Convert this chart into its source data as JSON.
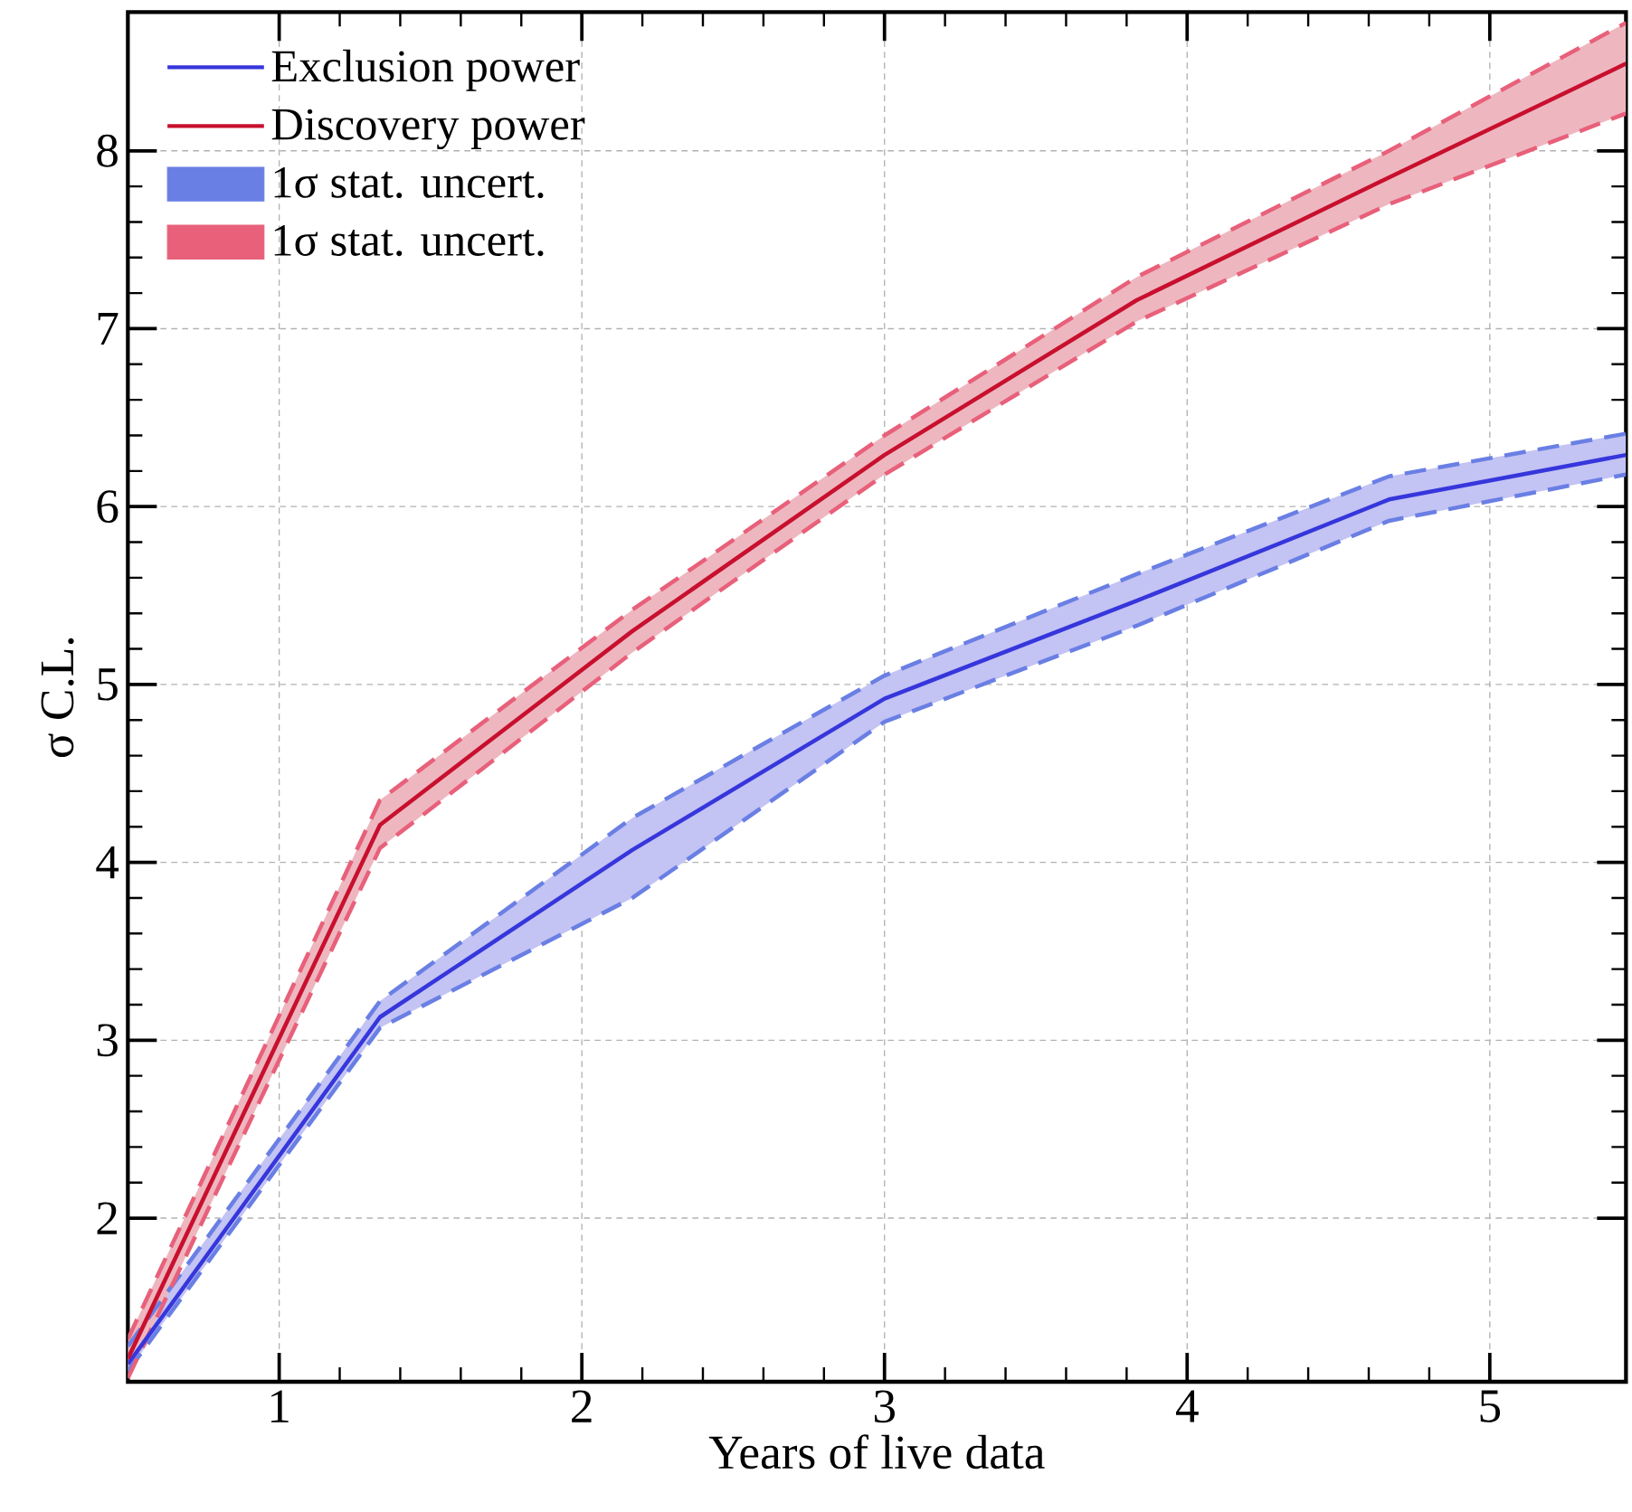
{
  "chart_data": {
    "type": "line",
    "xlabel": "Years of live data",
    "ylabel": "σ C.L.",
    "x": [
      0.5,
      1.333,
      2.167,
      3,
      3.833,
      4.667,
      5.45
    ],
    "xlim": [
      0.5,
      5.45
    ],
    "ylim": [
      1.08,
      8.78
    ],
    "xticks": [
      1,
      2,
      3,
      4,
      5
    ],
    "yticks": [
      2,
      3,
      4,
      5,
      6,
      7,
      8
    ],
    "grid": true,
    "legend": "top left",
    "line_style": "solid",
    "series": [
      {
        "name": "Exclusion power",
        "color": "#3636dc",
        "values": [
          1.18,
          3.13,
          4.07,
          4.92,
          5.47,
          6.04,
          6.29
        ],
        "lower": [
          1.14,
          3.07,
          3.8,
          4.79,
          5.33,
          5.92,
          6.18
        ],
        "upper": [
          1.28,
          3.22,
          4.25,
          5.05,
          5.62,
          6.17,
          6.41
        ]
      },
      {
        "name": "Discovery power",
        "color": "#c8102e",
        "values": [
          1.21,
          4.21,
          5.3,
          6.29,
          7.16,
          7.85,
          8.49
        ],
        "lower": [
          1.1,
          4.08,
          5.18,
          6.18,
          7.04,
          7.7,
          8.21
        ],
        "upper": [
          1.32,
          4.35,
          5.42,
          6.4,
          7.29,
          8.0,
          8.72
        ]
      },
      {
        "name": "1σ stat. uncert.",
        "color": "#6a7fe4",
        "line_style": "dashed",
        "values": [
          1.28,
          3.22,
          4.25,
          5.05,
          5.62,
          6.17,
          6.41
        ]
      },
      {
        "name": "1σ stat. uncert.",
        "color": "#e8607a",
        "line_style": "dashed",
        "values": [
          1.32,
          4.35,
          5.42,
          6.4,
          7.29,
          8.0,
          8.72
        ]
      },
      {
        "color": "#6a7fe4",
        "line_style": "dashed",
        "values": [
          1.14,
          3.07,
          3.8,
          4.79,
          5.33,
          5.92,
          6.18
        ]
      },
      {
        "color": "#e8607a",
        "line_style": "dashed",
        "values": [
          1.1,
          4.08,
          5.18,
          6.18,
          7.04,
          7.7,
          8.21
        ]
      }
    ]
  }
}
